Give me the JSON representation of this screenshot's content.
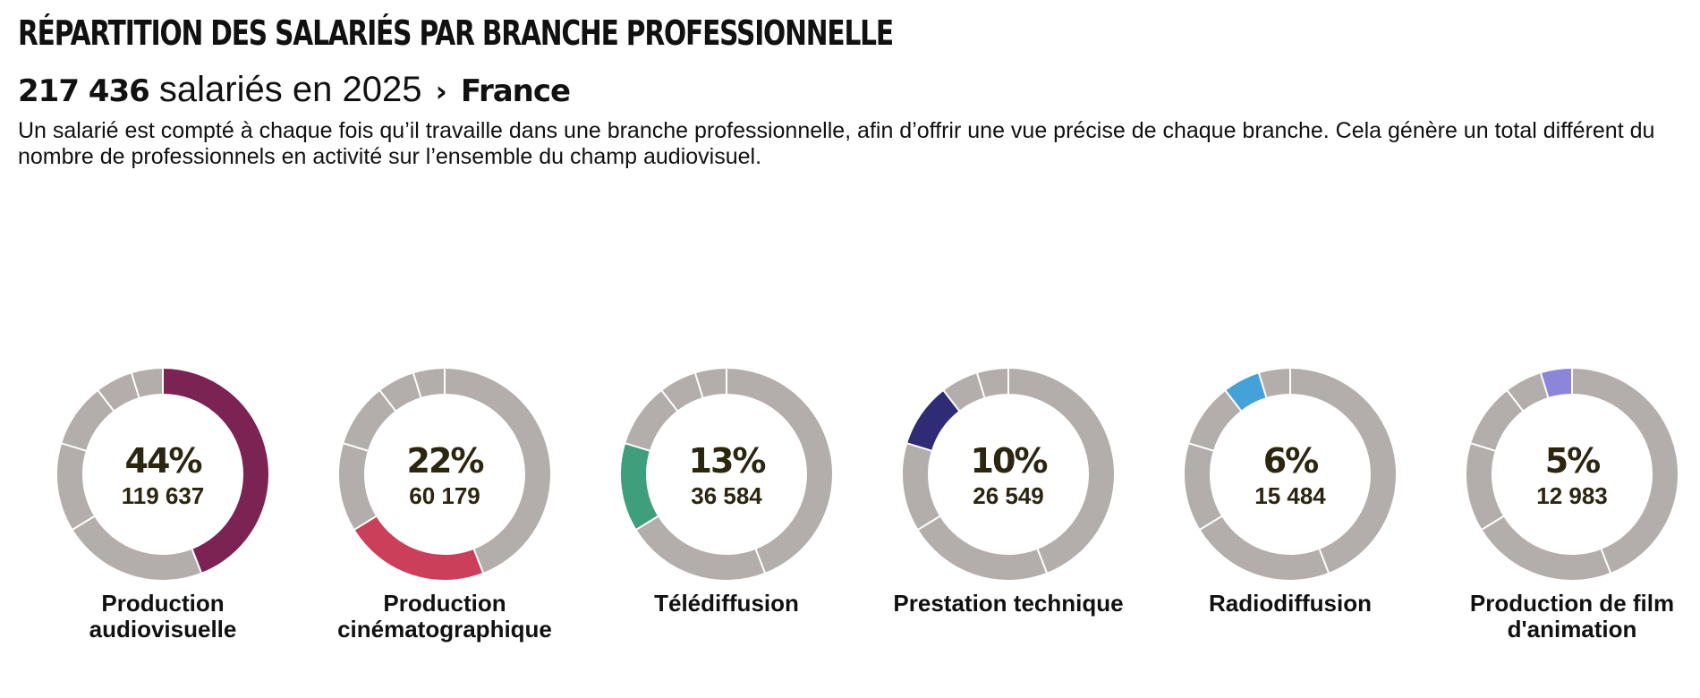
{
  "header": {
    "title": "RÉPARTITION DES SALARIÉS PAR BRANCHE PROFESSIONNELLE",
    "total": "217 436",
    "total_suffix": "salariés en 2025",
    "separator": "›",
    "location": "France",
    "description": "Un salarié est compté à chaque fois qu’il travaille dans une branche professionnelle, afin d’offrir une vue précise de chaque branche. Cela génère un total différent du nombre de professionnels en activité sur l’ensemble du champ audiovisuel."
  },
  "chart_data": {
    "type": "pie",
    "variant": "donut-small-multiples",
    "track_color": "#b3aeab",
    "categories": [
      "Production audiovisuelle",
      "Production cinématographique",
      "Télédiffusion",
      "Prestation technique",
      "Radiodiffusion",
      "Production de film d'animation"
    ],
    "values": [
      119637,
      60179,
      36584,
      26549,
      15484,
      12983
    ],
    "percent_labels": [
      "44%",
      "22%",
      "13%",
      "10%",
      "6%",
      "5%"
    ],
    "value_labels": [
      "119 637",
      "60 179",
      "36 584",
      "26 549",
      "15 484",
      "12 983"
    ],
    "colors": [
      "#7b2352",
      "#cc3f5a",
      "#3f9e7c",
      "#2f2c75",
      "#44a2d8",
      "#8b86d8"
    ]
  }
}
